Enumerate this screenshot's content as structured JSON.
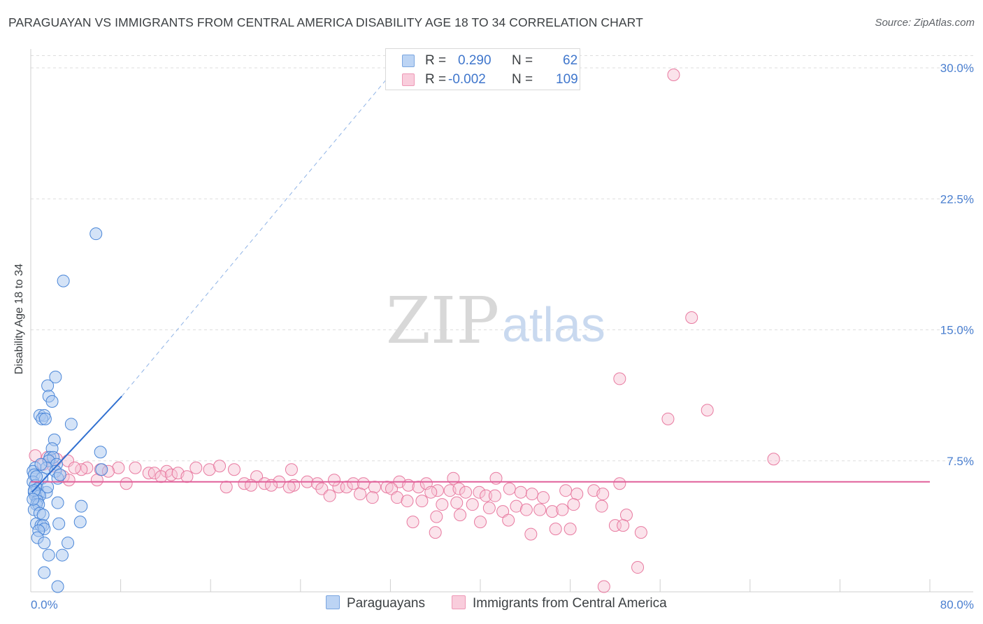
{
  "header": {
    "title": "PARAGUAYAN VS IMMIGRANTS FROM CENTRAL AMERICA DISABILITY AGE 18 TO 34 CORRELATION CHART",
    "source": "Source: ZipAtlas.com"
  },
  "watermark": {
    "zip": "ZIP",
    "atlas": "atlas"
  },
  "legend": {
    "r_label": "R =",
    "n_label": "N =",
    "series1": {
      "r": "0.290",
      "n": "62"
    },
    "series2": {
      "r": "-0.002",
      "n": "109"
    }
  },
  "bottom_legend": {
    "series1": "Paraguayans",
    "series2": "Immigrants from Central America"
  },
  "colors": {
    "blue_fill": "#a9c8f0",
    "blue_stroke": "#4a86d8",
    "blue_line": "#2f6fd0",
    "pink_fill": "#f7c0d2",
    "pink_stroke": "#e87aa0",
    "pink_line": "#e0609a",
    "tick": "#4a7fd0",
    "grid": "#dddddd"
  },
  "chart_data": {
    "type": "scatter",
    "title": "PARAGUAYAN VS IMMIGRANTS FROM CENTRAL AMERICA DISABILITY AGE 18 TO 34 CORRELATION CHART",
    "xlabel": "",
    "ylabel": "Disability Age 18 to 34",
    "xlim": [
      0,
      80
    ],
    "ylim": [
      0,
      31
    ],
    "x_tick_labels": [
      "0.0%",
      "80.0%"
    ],
    "y_ticks": [
      {
        "value": 7.5,
        "label": "7.5%"
      },
      {
        "value": 15.0,
        "label": "15.0%"
      },
      {
        "value": 22.5,
        "label": "22.5%"
      },
      {
        "value": 30.0,
        "label": "30.0%"
      }
    ],
    "grid": true,
    "series": [
      {
        "name": "Paraguayans",
        "r": 0.29,
        "n": 62,
        "trend": {
          "x0": 0.1,
          "y0": 5.7,
          "x1": 8.1,
          "y1": 11.2,
          "dashed_to_x": 32.5,
          "dashed_to_y": 30.0
        },
        "points": [
          [
            5.8,
            20.5
          ],
          [
            2.9,
            17.8
          ],
          [
            2.2,
            12.3
          ],
          [
            1.5,
            11.8
          ],
          [
            1.6,
            11.2
          ],
          [
            1.9,
            10.9
          ],
          [
            0.8,
            10.1
          ],
          [
            1.2,
            10.1
          ],
          [
            1.0,
            9.9
          ],
          [
            1.3,
            9.9
          ],
          [
            3.6,
            9.6
          ],
          [
            2.1,
            8.7
          ],
          [
            6.2,
            8.0
          ],
          [
            1.9,
            8.2
          ],
          [
            1.7,
            7.7
          ],
          [
            2.0,
            7.7
          ],
          [
            1.6,
            7.5
          ],
          [
            2.3,
            7.3
          ],
          [
            0.4,
            7.1
          ],
          [
            1.4,
            7.1
          ],
          [
            6.3,
            7.0
          ],
          [
            0.2,
            6.9
          ],
          [
            2.2,
            6.9
          ],
          [
            0.3,
            6.7
          ],
          [
            1.0,
            6.5
          ],
          [
            2.4,
            6.5
          ],
          [
            0.2,
            6.3
          ],
          [
            0.4,
            6.1
          ],
          [
            0.6,
            5.9
          ],
          [
            0.3,
            5.7
          ],
          [
            0.7,
            5.6
          ],
          [
            1.4,
            5.7
          ],
          [
            0.4,
            5.5
          ],
          [
            0.8,
            5.5
          ],
          [
            0.6,
            5.2
          ],
          [
            0.5,
            5.0
          ],
          [
            0.7,
            5.0
          ],
          [
            2.4,
            5.1
          ],
          [
            4.5,
            4.9
          ],
          [
            0.3,
            4.7
          ],
          [
            0.8,
            4.5
          ],
          [
            1.1,
            4.4
          ],
          [
            0.5,
            3.9
          ],
          [
            0.9,
            3.8
          ],
          [
            1.1,
            3.8
          ],
          [
            2.5,
            3.9
          ],
          [
            4.4,
            4.0
          ],
          [
            1.2,
            3.6
          ],
          [
            0.7,
            3.5
          ],
          [
            0.6,
            3.1
          ],
          [
            1.2,
            2.8
          ],
          [
            3.3,
            2.8
          ],
          [
            1.6,
            2.1
          ],
          [
            2.8,
            2.1
          ],
          [
            1.2,
            1.1
          ],
          [
            2.4,
            0.3
          ],
          [
            0.3,
            5.8
          ],
          [
            1.5,
            6.0
          ],
          [
            0.9,
            7.3
          ],
          [
            2.6,
            6.7
          ],
          [
            0.2,
            5.3
          ],
          [
            0.5,
            6.6
          ]
        ]
      },
      {
        "name": "Immigrants from Central America",
        "r": -0.002,
        "n": 109,
        "trend": {
          "x0": 0,
          "y0": 6.3,
          "x1": 80,
          "y1": 6.3
        },
        "points": [
          [
            57.2,
            29.6
          ],
          [
            58.8,
            15.7
          ],
          [
            52.4,
            12.2
          ],
          [
            60.2,
            10.4
          ],
          [
            56.7,
            9.9
          ],
          [
            66.1,
            7.6
          ],
          [
            0.4,
            7.8
          ],
          [
            1.5,
            7.7
          ],
          [
            2.3,
            7.6
          ],
          [
            3.3,
            7.5
          ],
          [
            1.1,
            7.3
          ],
          [
            2.0,
            7.2
          ],
          [
            5.0,
            7.1
          ],
          [
            7.8,
            7.1
          ],
          [
            6.2,
            7.0
          ],
          [
            4.5,
            7.0
          ],
          [
            3.9,
            7.1
          ],
          [
            9.3,
            7.1
          ],
          [
            10.5,
            6.8
          ],
          [
            12.1,
            6.9
          ],
          [
            11.0,
            6.8
          ],
          [
            11.6,
            6.6
          ],
          [
            12.5,
            6.7
          ],
          [
            13.1,
            6.8
          ],
          [
            13.9,
            6.6
          ],
          [
            14.7,
            7.1
          ],
          [
            15.9,
            7.0
          ],
          [
            16.8,
            7.2
          ],
          [
            18.1,
            7.0
          ],
          [
            2.9,
            6.6
          ],
          [
            3.4,
            6.4
          ],
          [
            5.9,
            6.4
          ],
          [
            8.5,
            6.2
          ],
          [
            6.9,
            6.9
          ],
          [
            19.0,
            6.2
          ],
          [
            20.1,
            6.6
          ],
          [
            20.8,
            6.2
          ],
          [
            22.1,
            6.3
          ],
          [
            23.4,
            6.1
          ],
          [
            24.6,
            6.3
          ],
          [
            25.5,
            6.2
          ],
          [
            27.4,
            6.0
          ],
          [
            28.1,
            6.0
          ],
          [
            28.7,
            6.2
          ],
          [
            29.6,
            6.2
          ],
          [
            30.6,
            6.0
          ],
          [
            31.7,
            6.0
          ],
          [
            32.8,
            6.3
          ],
          [
            33.6,
            6.1
          ],
          [
            34.5,
            6.0
          ],
          [
            35.2,
            6.2
          ],
          [
            36.2,
            5.8
          ],
          [
            37.3,
            5.8
          ],
          [
            38.1,
            5.9
          ],
          [
            17.4,
            6.0
          ],
          [
            19.6,
            6.1
          ],
          [
            21.4,
            6.1
          ],
          [
            23.0,
            6.0
          ],
          [
            25.9,
            5.9
          ],
          [
            27.0,
            6.4
          ],
          [
            32.1,
            5.9
          ],
          [
            35.6,
            5.7
          ],
          [
            38.7,
            5.7
          ],
          [
            39.9,
            5.7
          ],
          [
            40.5,
            5.5
          ],
          [
            41.3,
            5.5
          ],
          [
            42.6,
            5.9
          ],
          [
            43.6,
            5.7
          ],
          [
            44.6,
            5.6
          ],
          [
            45.6,
            5.4
          ],
          [
            47.6,
            5.8
          ],
          [
            48.6,
            5.6
          ],
          [
            50.1,
            5.8
          ],
          [
            50.9,
            5.6
          ],
          [
            52.4,
            6.2
          ],
          [
            26.6,
            5.5
          ],
          [
            29.3,
            5.6
          ],
          [
            30.4,
            5.4
          ],
          [
            32.6,
            5.4
          ],
          [
            33.5,
            5.2
          ],
          [
            34.8,
            5.2
          ],
          [
            36.6,
            5.0
          ],
          [
            37.9,
            5.1
          ],
          [
            39.3,
            5.0
          ],
          [
            40.8,
            4.8
          ],
          [
            42.0,
            4.6
          ],
          [
            43.2,
            4.9
          ],
          [
            44.1,
            4.7
          ],
          [
            45.3,
            4.7
          ],
          [
            46.4,
            4.6
          ],
          [
            47.3,
            4.7
          ],
          [
            48.3,
            5.0
          ],
          [
            50.8,
            4.9
          ],
          [
            53.0,
            4.4
          ],
          [
            23.2,
            7.0
          ],
          [
            37.6,
            6.5
          ],
          [
            34.0,
            4.0
          ],
          [
            36.1,
            4.3
          ],
          [
            38.2,
            4.4
          ],
          [
            40.0,
            4.0
          ],
          [
            42.5,
            4.1
          ],
          [
            46.7,
            3.6
          ],
          [
            48.0,
            3.6
          ],
          [
            52.0,
            3.8
          ],
          [
            36.0,
            3.4
          ],
          [
            44.5,
            3.3
          ],
          [
            52.7,
            3.8
          ],
          [
            54.3,
            3.4
          ],
          [
            54.0,
            1.4
          ],
          [
            51.0,
            0.3
          ],
          [
            41.4,
            6.5
          ]
        ]
      }
    ]
  }
}
